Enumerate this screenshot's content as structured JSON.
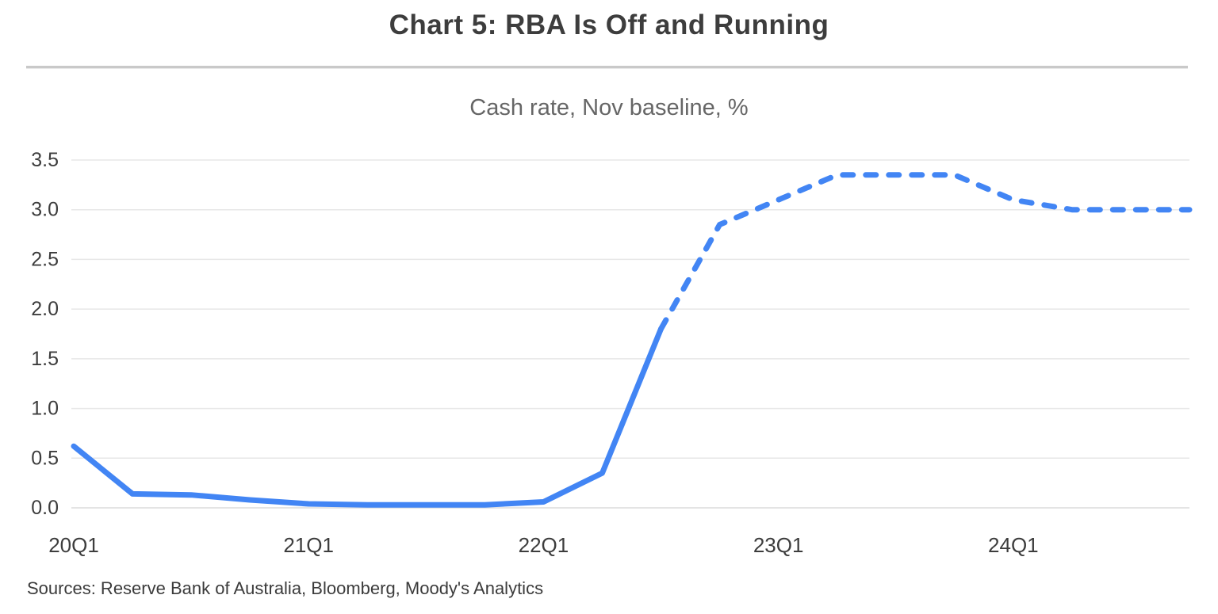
{
  "header": {
    "title": "Chart 5: RBA Is Off and Running",
    "subtitle": "Cash rate, Nov baseline, %"
  },
  "footer": {
    "sources": "Sources: Reserve Bank of Australia, Bloomberg, Moody's Analytics"
  },
  "colors": {
    "line_blue": "#4285f4",
    "gridline": "#e7e7e7",
    "baseline_gridline": "#dcdcdc",
    "title_text": "#3d3d3d",
    "subtitle_text": "#666666",
    "axis_text": "#3d3d3d",
    "sources_text": "#3b3b3b",
    "divider": "#c9c9c9"
  },
  "chart_data": {
    "type": "line",
    "title": "Chart 5: RBA Is Off and Running",
    "subtitle": "Cash rate, Nov baseline, %",
    "xlabel": "",
    "ylabel": "Cash rate, Nov baseline, %",
    "ylim": [
      0,
      3.5
    ],
    "ytick_step": 0.5,
    "ytick_labels": [
      "0.0",
      "0.5",
      "1.0",
      "1.5",
      "2.0",
      "2.5",
      "3.0",
      "3.5"
    ],
    "grid": true,
    "legend_position": "none",
    "categories": [
      "20Q1",
      "20Q2",
      "20Q3",
      "20Q4",
      "21Q1",
      "21Q2",
      "21Q3",
      "21Q4",
      "22Q1",
      "22Q2",
      "22Q3",
      "22Q4",
      "23Q1",
      "23Q2",
      "23Q3",
      "23Q4",
      "24Q1",
      "24Q2",
      "24Q3",
      "24Q4"
    ],
    "xtick_labels": [
      "20Q1",
      "21Q1",
      "22Q1",
      "23Q1",
      "24Q1"
    ],
    "xtick_indices": [
      0,
      4,
      8,
      12,
      16
    ],
    "series": [
      {
        "name": "Cash rate, Nov baseline, %",
        "values": [
          0.62,
          0.14,
          0.13,
          0.08,
          0.04,
          0.03,
          0.03,
          0.03,
          0.06,
          0.35,
          1.8,
          2.85,
          3.1,
          3.35,
          3.35,
          3.35,
          3.1,
          3.0,
          3.0,
          3.0
        ],
        "forecast_start_index": 10,
        "actual_style": "solid",
        "forecast_style": "dashed"
      }
    ]
  }
}
